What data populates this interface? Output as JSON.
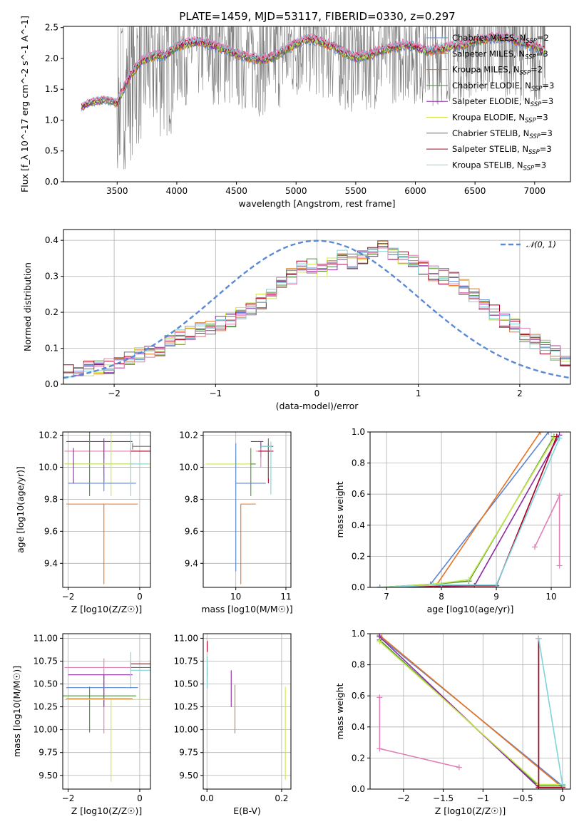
{
  "figure": {
    "title": "PLATE=1459, MJD=53117, FIBERID=0330, z=0.297"
  },
  "colors": {
    "c1": "#5a86d8",
    "c2": "#e8731f",
    "c3": "#4a8f3f",
    "c4": "#8f2aa5",
    "c5": "#c8e84a",
    "c6": "#6e6e6e",
    "c7": "#b00020",
    "c8": "#7fd4dc",
    "c9": "#e07fb8",
    "grid": "#b0b0b0",
    "gauss": "#5a8ad6"
  },
  "legend_spectrum": [
    {
      "label": "Chabrier MILES, N",
      "sub": "SSP",
      "tail": "=2",
      "color": "#5a86d8"
    },
    {
      "label": "Salpeter MILES, N",
      "sub": "SSP",
      "tail": "=3",
      "color": "#e8731f"
    },
    {
      "label": "Kroupa MILES, N",
      "sub": "SSP",
      "tail": "=2",
      "color": "#e8731f"
    },
    {
      "label": "Chabrier ELODIE, N",
      "sub": "SSP",
      "tail": "=3",
      "color": "#4a8f3f"
    },
    {
      "label": "Salpeter ELODIE, N",
      "sub": "SSP",
      "tail": "=3",
      "color": "#8f2aa5"
    },
    {
      "label": "Kroupa ELODIE, N",
      "sub": "SSP",
      "tail": "=3",
      "color": "#c8e84a"
    },
    {
      "label": "Chabrier STELIB, N",
      "sub": "SSP",
      "tail": "=3",
      "color": "#6e6e6e"
    },
    {
      "label": "Salpeter STELIB, N",
      "sub": "SSP",
      "tail": "=3",
      "color": "#b00020"
    },
    {
      "label": "Kroupa STELIB, N",
      "sub": "SSP",
      "tail": "=3",
      "color": "#7fd4dc"
    }
  ],
  "chart_data": [
    {
      "id": "spectrum",
      "type": "line",
      "title": "PLATE=1459, MJD=53117, FIBERID=0330, z=0.297",
      "xlabel": "wavelength [Angstrom, rest frame]",
      "ylabel": "Flux [f_λ 10^-17 erg cm^-2 s^-1 A^-1]",
      "xlim": [
        3050,
        7300
      ],
      "ylim": [
        0,
        2.52
      ],
      "xticks": [
        3500,
        4000,
        4500,
        5000,
        5500,
        6000,
        6500,
        7000
      ],
      "yticks": [
        0.0,
        0.5,
        1.0,
        1.5,
        2.0,
        2.5
      ],
      "x": [
        3200,
        3300,
        3400,
        3500,
        3600,
        3700,
        3800,
        3900,
        4000,
        4100,
        4200,
        4300,
        4400,
        4500,
        4600,
        4700,
        4800,
        4900,
        5000,
        5100,
        5200,
        5300,
        5400,
        5500,
        5600,
        5700,
        5800,
        5900,
        6000,
        6100,
        6200,
        6300,
        6400,
        6500,
        6600,
        6700,
        6800,
        6900,
        7000,
        7090
      ],
      "data_flux": [
        1.2,
        1.32,
        1.35,
        1.3,
        1.6,
        1.9,
        2.0,
        1.95,
        2.15,
        2.2,
        2.25,
        2.2,
        2.15,
        2.1,
        2.05,
        2.0,
        2.05,
        2.15,
        2.25,
        2.35,
        2.3,
        2.2,
        2.1,
        2.05,
        2.1,
        2.15,
        2.2,
        2.25,
        2.2,
        2.15,
        2.2,
        2.25,
        2.25,
        2.3,
        2.35,
        2.35,
        2.3,
        2.25,
        2.2,
        2.15
      ],
      "model_flux": [
        1.22,
        1.3,
        1.33,
        1.28,
        1.7,
        1.95,
        2.05,
        2.05,
        2.2,
        2.25,
        2.28,
        2.22,
        2.15,
        2.08,
        2.02,
        1.98,
        2.02,
        2.12,
        2.25,
        2.32,
        2.28,
        2.2,
        2.1,
        2.02,
        2.05,
        2.12,
        2.18,
        2.22,
        2.2,
        2.12,
        2.15,
        2.2,
        2.22,
        2.28,
        2.32,
        2.35,
        2.32,
        2.25,
        2.2,
        2.12
      ]
    },
    {
      "id": "residuals",
      "type": "line",
      "xlabel": "(data-model)/error",
      "ylabel": "Normed distribution",
      "xlim": [
        -2.5,
        2.5
      ],
      "ylim": [
        0,
        0.43
      ],
      "xticks": [
        -2,
        -1,
        0,
        1,
        2
      ],
      "yticks": [
        0.0,
        0.1,
        0.2,
        0.3,
        0.4
      ],
      "legend": "𝒩(0, 1)",
      "bin_edges_start": -2.5,
      "bin_width": 0.1,
      "hist_values": [
        0.035,
        0.04,
        0.045,
        0.05,
        0.052,
        0.06,
        0.07,
        0.08,
        0.09,
        0.1,
        0.12,
        0.13,
        0.14,
        0.15,
        0.16,
        0.17,
        0.18,
        0.2,
        0.21,
        0.23,
        0.25,
        0.28,
        0.3,
        0.32,
        0.33,
        0.32,
        0.33,
        0.35,
        0.34,
        0.35,
        0.37,
        0.38,
        0.36,
        0.35,
        0.34,
        0.32,
        0.31,
        0.3,
        0.29,
        0.27,
        0.25,
        0.23,
        0.2,
        0.18,
        0.16,
        0.14,
        0.12,
        0.1,
        0.085,
        0.07
      ]
    },
    {
      "id": "age_vs_Z",
      "type": "scatter",
      "xlabel": "Z [log10(Z/Z☉)]",
      "ylabel": "age [log10(age/yr)]",
      "xlim": [
        -2.15,
        0.3
      ],
      "ylim": [
        9.25,
        10.22
      ],
      "xticks": [
        -2,
        0
      ],
      "yticks": [
        9.4,
        9.6,
        9.8,
        10.0,
        10.2
      ]
    },
    {
      "id": "age_vs_mass",
      "type": "scatter",
      "xlabel": "mass [log10(M/M☉)]",
      "ylabel": "",
      "xlim": [
        9.35,
        11.1
      ],
      "ylim": [
        9.25,
        10.22
      ],
      "xticks": [
        10,
        11
      ],
      "yticks": [
        9.4,
        9.6,
        9.8,
        10.0,
        10.2
      ]
    },
    {
      "id": "weight_vs_age",
      "type": "line",
      "xlabel": "age [log10(age/yr)]",
      "ylabel": "mass weight",
      "xlim": [
        6.7,
        10.35
      ],
      "ylim": [
        0,
        1.0
      ],
      "xticks": [
        7,
        8,
        9,
        10
      ],
      "yticks": [
        0.0,
        0.2,
        0.4,
        0.6,
        0.8,
        1.0
      ],
      "series": [
        {
          "color": "#5a86d8",
          "x": [
            6.88,
            7.8,
            9.95
          ],
          "y": [
            0.0,
            0.02,
            1.0
          ]
        },
        {
          "color": "#e8731f",
          "x": [
            6.88,
            7.9,
            9.8
          ],
          "y": [
            0.0,
            0.01,
            1.0
          ]
        },
        {
          "color": "#4a8f3f",
          "x": [
            6.88,
            7.85,
            8.5,
            10.05
          ],
          "y": [
            0.0,
            0.02,
            0.04,
            0.97
          ]
        },
        {
          "color": "#8f2aa5",
          "x": [
            6.88,
            8.0,
            8.6,
            10.15
          ],
          "y": [
            0.0,
            0.005,
            0.01,
            0.98
          ]
        },
        {
          "color": "#c8e84a",
          "x": [
            6.88,
            7.85,
            8.5,
            10.05
          ],
          "y": [
            0.0,
            0.02,
            0.05,
            0.96
          ]
        },
        {
          "color": "#6e6e6e",
          "x": [
            6.88,
            8.0,
            9.0,
            10.1
          ],
          "y": [
            0.0,
            0.01,
            0.01,
            0.97
          ]
        },
        {
          "color": "#b00020",
          "x": [
            6.88,
            8.0,
            9.0,
            10.1
          ],
          "y": [
            0.0,
            0.01,
            0.01,
            0.97
          ]
        },
        {
          "color": "#7fd4dc",
          "x": [
            6.88,
            8.0,
            9.0,
            10.15
          ],
          "y": [
            0.0,
            0.015,
            0.015,
            0.96
          ]
        },
        {
          "color": "#e07fb8",
          "x": [
            9.7,
            10.15,
            10.15
          ],
          "y": [
            0.26,
            0.59,
            0.14
          ]
        }
      ]
    },
    {
      "id": "mass_vs_Z",
      "type": "scatter",
      "xlabel": "Z [log10(Z/Z☉)]",
      "ylabel": "mass [log10(M/M☉)]",
      "xlim": [
        -2.15,
        0.3
      ],
      "ylim": [
        9.35,
        11.05
      ],
      "xticks": [
        -2,
        0
      ],
      "yticks": [
        9.5,
        9.75,
        10.0,
        10.25,
        10.5,
        10.75,
        11.0
      ]
    },
    {
      "id": "mass_vs_ebv",
      "type": "scatter",
      "xlabel": "E(B-V)",
      "ylabel": "",
      "xlim": [
        -0.01,
        0.225
      ],
      "ylim": [
        9.35,
        11.05
      ],
      "xticks": [
        0.0,
        0.2
      ],
      "yticks": [
        9.5,
        9.75,
        10.0,
        10.25,
        10.5,
        10.75,
        11.0
      ]
    },
    {
      "id": "weight_vs_Z",
      "type": "line",
      "xlabel": "Z [log10(Z/Z☉)]",
      "ylabel": "mass weight",
      "xlim": [
        -2.42,
        0.1
      ],
      "ylim": [
        0,
        1.0
      ],
      "xticks": [
        -2.0,
        -1.5,
        -1.0,
        -0.5,
        0.0
      ],
      "yticks": [
        0.0,
        0.2,
        0.4,
        0.6,
        0.8,
        1.0
      ],
      "series": [
        {
          "color": "#5a86d8",
          "x": [
            -2.3,
            0.0
          ],
          "y": [
            0.98,
            0.02
          ]
        },
        {
          "color": "#e8731f",
          "x": [
            -2.3,
            0.0
          ],
          "y": [
            0.99,
            0.01
          ]
        },
        {
          "color": "#4a8f3f",
          "x": [
            -2.3,
            -0.3,
            0.0
          ],
          "y": [
            0.96,
            0.02,
            0.02
          ]
        },
        {
          "color": "#8f2aa5",
          "x": [
            -2.3,
            -0.3,
            0.0
          ],
          "y": [
            0.98,
            0.01,
            0.01
          ]
        },
        {
          "color": "#c8e84a",
          "x": [
            -2.3,
            -0.3,
            0.0
          ],
          "y": [
            0.95,
            0.03,
            0.03
          ]
        },
        {
          "color": "#6e6e6e",
          "x": [
            -0.3,
            -0.3,
            0.0
          ],
          "y": [
            0.97,
            0.01,
            0.01
          ]
        },
        {
          "color": "#b00020",
          "x": [
            -0.3,
            -0.3,
            0.0
          ],
          "y": [
            0.97,
            0.01,
            0.01
          ]
        },
        {
          "color": "#7fd4dc",
          "x": [
            -0.3,
            0.0
          ],
          "y": [
            0.97,
            0.03
          ]
        },
        {
          "color": "#e07fb8",
          "x": [
            -2.3,
            -2.3,
            -1.3
          ],
          "y": [
            0.59,
            0.26,
            0.14
          ]
        }
      ]
    }
  ]
}
